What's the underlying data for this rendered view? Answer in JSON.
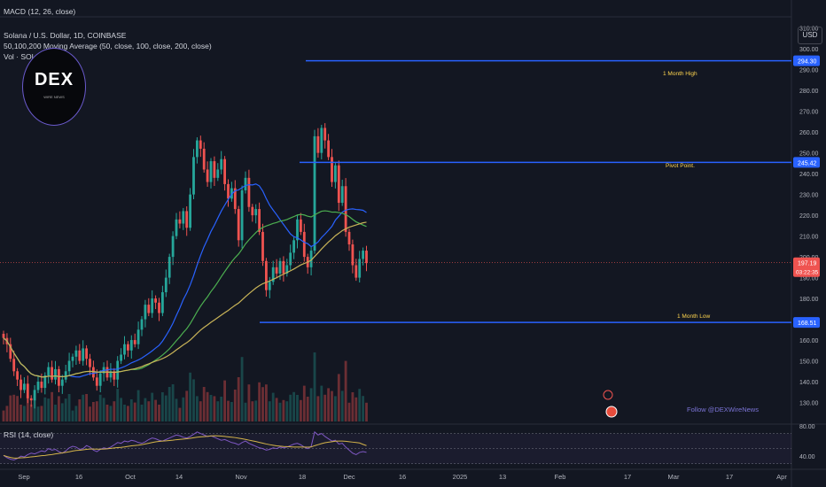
{
  "header": {
    "macd_label": "MACD (12, 26, close)",
    "symbol_line": "Solana / U.S. Dollar, 1D, COINBASE",
    "ma_line": "50,100,200 Moving Average (50, close, 100, close, 200, close)",
    "vol_line": "Vol · SOL"
  },
  "currency_button": "USD",
  "logo": {
    "text": "DEX",
    "subtext": "WIRE NEWS"
  },
  "watermark": "Follow @DEXWireNews",
  "rsi_label": "RSI (14, close)",
  "colors": {
    "up": "#26a69a",
    "down": "#ef5350",
    "level": "#2962ff",
    "ma50": "#2962ff",
    "ma100": "#4caf50",
    "ma200": "#c9b458",
    "rsi": "#7e57c2"
  },
  "chart_data": {
    "type": "candlestick",
    "ylim": [
      120,
      315
    ],
    "y_ticks": [
      130,
      140,
      150,
      160,
      170,
      180,
      190,
      200,
      210,
      220,
      230,
      240,
      250,
      260,
      270,
      280,
      290,
      300,
      310
    ],
    "y_tick_labels": [
      "130.00",
      "140.00",
      "150.00",
      "160.00",
      "170.00",
      "180.00",
      "190.00",
      "200.00",
      "210.00",
      "220.00",
      "230.00",
      "240.00",
      "250.00",
      "260.00",
      "270.00",
      "280.00",
      "290.00",
      "300.00",
      "310.00"
    ],
    "x_ticks": [
      "Sep",
      "16",
      "Oct",
      "14",
      "Nov",
      "18",
      "Dec",
      "16",
      "2025",
      "13",
      "Feb",
      "17",
      "Mar",
      "17",
      "Apr"
    ],
    "levels": [
      {
        "label": "1 Month High",
        "value": 294.3,
        "tag": "294.30"
      },
      {
        "label": "Pivot Point.",
        "value": 245.42,
        "tag": "245.42"
      },
      {
        "label": "1 Month Low",
        "value": 168.51,
        "tag": "168.51"
      }
    ],
    "last_price": {
      "value": 197.19,
      "tag": "197.19",
      "countdown": "03:22:35"
    },
    "closes": [
      161,
      158,
      151,
      145,
      141,
      136,
      139,
      132,
      131,
      136,
      140,
      137,
      143,
      147,
      141,
      146,
      138,
      141,
      145,
      150,
      152,
      155,
      150,
      156,
      151,
      147,
      142,
      138,
      144,
      147,
      142,
      145,
      141,
      150,
      153,
      158,
      155,
      160,
      158,
      165,
      170,
      177,
      173,
      180,
      178,
      173,
      183,
      190,
      200,
      210,
      218,
      216,
      222,
      214,
      230,
      248,
      256,
      252,
      242,
      236,
      246,
      238,
      242,
      247,
      235,
      228,
      233,
      223,
      208,
      232,
      238,
      224,
      220,
      223,
      212,
      198,
      184,
      188,
      195,
      192,
      198,
      192,
      196,
      202,
      208,
      218,
      212,
      200,
      195,
      203,
      258,
      250,
      262,
      256,
      248,
      236,
      244,
      226,
      234,
      212,
      206,
      196,
      190,
      199,
      203,
      197
    ],
    "rsi": [
      41,
      38,
      36,
      35,
      37,
      40,
      39,
      42,
      44,
      43,
      45,
      47,
      46,
      50,
      48,
      49,
      46,
      44,
      47,
      51,
      53,
      52,
      49,
      50,
      54,
      52,
      48,
      46,
      49,
      51,
      50,
      52,
      55,
      58,
      57,
      60,
      59,
      61,
      60,
      58,
      57,
      59,
      62,
      64,
      63,
      61,
      60,
      62,
      64,
      66,
      68,
      67,
      65,
      64,
      66,
      69,
      72,
      70,
      68,
      66,
      67,
      65,
      63,
      61,
      62,
      60,
      58,
      57,
      55,
      58,
      60,
      57,
      55,
      53,
      51,
      50,
      48,
      49,
      51,
      50,
      52,
      51,
      52,
      54,
      56,
      57,
      55,
      52,
      50,
      53,
      72,
      68,
      70,
      66,
      63,
      60,
      61,
      56,
      57,
      52,
      48,
      44,
      42,
      45,
      46,
      45
    ],
    "rsi_ylim": [
      25,
      80
    ],
    "rsi_ticks": [
      40,
      80
    ],
    "rsi_tick_labels": [
      "40.00",
      "80.00"
    ]
  }
}
